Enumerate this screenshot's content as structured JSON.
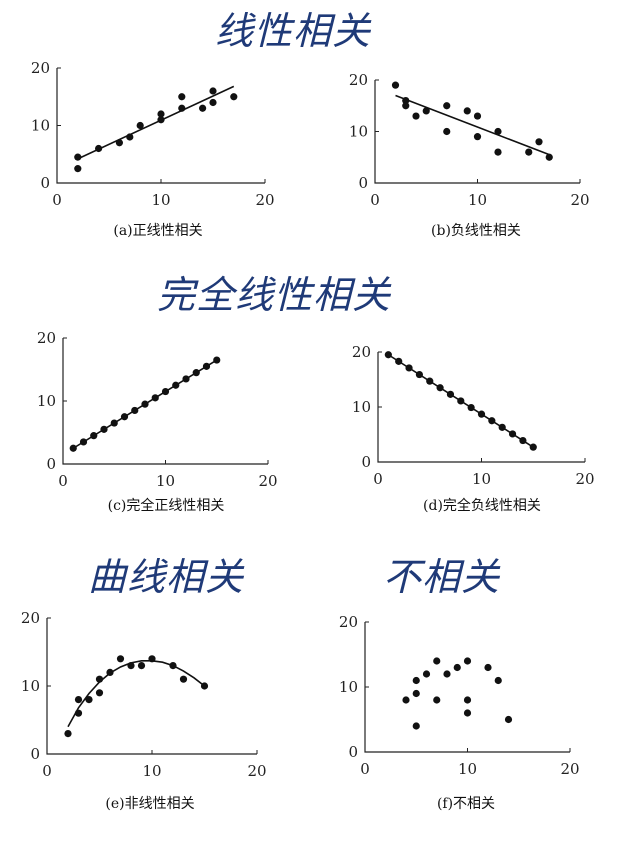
{
  "headings": {
    "linear": "线性相关",
    "perfect": "完全线性相关",
    "curve": "曲线相关",
    "none": "不相关"
  },
  "chart_data": [
    {
      "id": "a",
      "type": "scatter",
      "caption": "(a)正线性相关",
      "xlim": [
        0,
        20
      ],
      "ylim": [
        0,
        20
      ],
      "xticks": [
        0,
        10,
        20
      ],
      "yticks": [
        0,
        10,
        20
      ],
      "points": [
        [
          2,
          2.5
        ],
        [
          2,
          4.5
        ],
        [
          4,
          6
        ],
        [
          6,
          7
        ],
        [
          7,
          8
        ],
        [
          8,
          10
        ],
        [
          10,
          11
        ],
        [
          10,
          12
        ],
        [
          12,
          13
        ],
        [
          12,
          15
        ],
        [
          14,
          13
        ],
        [
          15,
          14
        ],
        [
          15,
          16
        ],
        [
          17,
          15
        ]
      ],
      "fit": {
        "kind": "linear",
        "x": [
          2,
          17
        ],
        "y": [
          4.2,
          16.8
        ]
      }
    },
    {
      "id": "b",
      "type": "scatter",
      "caption": "(b)负线性相关",
      "xlim": [
        0,
        20
      ],
      "ylim": [
        0,
        20
      ],
      "xticks": [
        0,
        10,
        20
      ],
      "yticks": [
        0,
        10,
        20
      ],
      "points": [
        [
          2,
          19
        ],
        [
          3,
          16
        ],
        [
          3,
          15
        ],
        [
          4,
          13
        ],
        [
          5,
          14
        ],
        [
          7,
          15
        ],
        [
          7,
          10
        ],
        [
          9,
          14
        ],
        [
          10,
          13
        ],
        [
          10,
          9
        ],
        [
          12,
          10
        ],
        [
          12,
          6
        ],
        [
          15,
          6
        ],
        [
          16,
          8
        ],
        [
          17,
          5
        ]
      ],
      "fit": {
        "kind": "linear",
        "x": [
          2,
          17
        ],
        "y": [
          17,
          5.5
        ]
      }
    },
    {
      "id": "c",
      "type": "scatter",
      "caption": "(c)完全正线性相关",
      "xlim": [
        0,
        20
      ],
      "ylim": [
        0,
        20
      ],
      "xticks": [
        0,
        10,
        20
      ],
      "yticks": [
        0,
        10,
        20
      ],
      "points": [
        [
          1,
          2.5
        ],
        [
          2,
          3.5
        ],
        [
          3,
          4.5
        ],
        [
          4,
          5.5
        ],
        [
          5,
          6.5
        ],
        [
          6,
          7.5
        ],
        [
          7,
          8.5
        ],
        [
          8,
          9.5
        ],
        [
          9,
          10.5
        ],
        [
          10,
          11.5
        ],
        [
          11,
          12.5
        ],
        [
          12,
          13.5
        ],
        [
          13,
          14.5
        ],
        [
          14,
          15.5
        ],
        [
          15,
          16.5
        ]
      ],
      "fit": {
        "kind": "linear",
        "x": [
          1,
          15
        ],
        "y": [
          2.5,
          16.5
        ]
      }
    },
    {
      "id": "d",
      "type": "scatter",
      "caption": "(d)完全负线性相关",
      "xlim": [
        0,
        20
      ],
      "ylim": [
        0,
        20
      ],
      "xticks": [
        0,
        10,
        20
      ],
      "yticks": [
        0,
        10,
        20
      ],
      "points": [
        [
          1,
          19.5
        ],
        [
          2,
          18.3
        ],
        [
          3,
          17.1
        ],
        [
          4,
          15.9
        ],
        [
          5,
          14.7
        ],
        [
          6,
          13.5
        ],
        [
          7,
          12.3
        ],
        [
          8,
          11.1
        ],
        [
          9,
          9.9
        ],
        [
          10,
          8.7
        ],
        [
          11,
          7.5
        ],
        [
          12,
          6.3
        ],
        [
          13,
          5.1
        ],
        [
          14,
          3.9
        ],
        [
          15,
          2.7
        ]
      ],
      "fit": {
        "kind": "linear",
        "x": [
          1,
          15
        ],
        "y": [
          19.5,
          2.7
        ]
      }
    },
    {
      "id": "e",
      "type": "scatter",
      "caption": "(e)非线性相关",
      "xlim": [
        0,
        20
      ],
      "ylim": [
        0,
        20
      ],
      "xticks": [
        0,
        10,
        20
      ],
      "yticks": [
        0,
        10,
        20
      ],
      "points": [
        [
          2,
          3
        ],
        [
          3,
          6
        ],
        [
          3,
          8
        ],
        [
          4,
          8
        ],
        [
          5,
          9
        ],
        [
          5,
          11
        ],
        [
          6,
          12
        ],
        [
          7,
          14
        ],
        [
          8,
          13
        ],
        [
          9,
          13
        ],
        [
          10,
          14
        ],
        [
          12,
          13
        ],
        [
          13,
          11
        ],
        [
          15,
          10
        ]
      ],
      "fit": {
        "kind": "curve",
        "x": [
          2,
          3,
          4,
          5,
          6,
          7,
          8,
          9,
          10,
          11,
          12,
          13,
          14,
          15
        ],
        "y": [
          4,
          6.8,
          8.9,
          10.6,
          11.9,
          12.8,
          13.4,
          13.7,
          13.7,
          13.5,
          13,
          12.2,
          11.2,
          10
        ]
      }
    },
    {
      "id": "f",
      "type": "scatter",
      "caption": "(f)不相关",
      "xlim": [
        0,
        20
      ],
      "ylim": [
        0,
        20
      ],
      "xticks": [
        0,
        10,
        20
      ],
      "yticks": [
        0,
        10,
        20
      ],
      "points": [
        [
          4,
          8
        ],
        [
          5,
          11
        ],
        [
          5,
          9
        ],
        [
          5,
          4
        ],
        [
          6,
          12
        ],
        [
          7,
          14
        ],
        [
          7,
          8
        ],
        [
          8,
          12
        ],
        [
          9,
          13
        ],
        [
          10,
          14
        ],
        [
          10,
          8
        ],
        [
          10,
          6
        ],
        [
          12,
          13
        ],
        [
          13,
          11
        ],
        [
          14,
          5
        ]
      ],
      "fit": null
    }
  ]
}
